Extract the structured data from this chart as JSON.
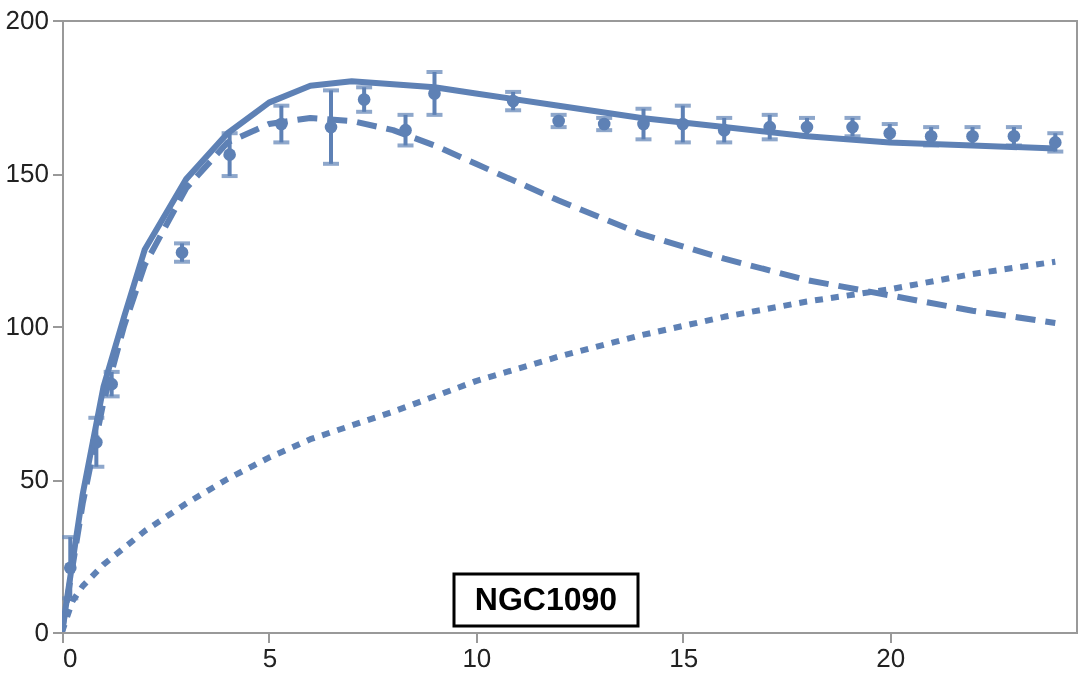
{
  "chart_data": {
    "type": "line",
    "xlim": [
      0,
      24.5
    ],
    "ylim": [
      0,
      200
    ],
    "xticks": [
      0,
      5,
      10,
      15,
      20
    ],
    "yticks": [
      0,
      50,
      100,
      150,
      200
    ],
    "grid": false,
    "annotations": [
      "NGC1090"
    ],
    "series": [
      {
        "type": "scatter",
        "color": "#5e81b5",
        "marker": "circle",
        "x": [
          0.2,
          0.83,
          1.2,
          2.9,
          4.05,
          5.3,
          6.5,
          7.3,
          8.3,
          9.0,
          10.9,
          12.0,
          13.1,
          14.05,
          15.0,
          16.0,
          17.1,
          18.0,
          19.1,
          20.0,
          21.0,
          22.0,
          23.0,
          24.0
        ],
        "values": [
          21,
          62,
          81,
          124,
          156,
          166,
          165,
          174,
          164,
          176,
          173.5,
          167,
          166,
          166,
          166,
          164,
          165,
          165,
          165,
          163,
          162,
          162,
          162,
          160
        ],
        "errors": [
          10,
          8,
          4,
          3,
          7,
          6,
          12,
          4,
          5,
          7,
          3,
          2,
          2,
          5,
          6,
          4,
          4,
          3,
          3,
          3,
          3,
          3,
          3,
          3
        ]
      },
      {
        "type": "line",
        "color": "#5e81b5",
        "line_style": "solid",
        "x": [
          0,
          0.5,
          1,
          1.5,
          2,
          3,
          4,
          5,
          6,
          7,
          8,
          9,
          10,
          12,
          14,
          16,
          18,
          20,
          22,
          24
        ],
        "values": [
          0,
          45,
          80,
          103,
          125,
          148,
          163,
          173,
          178.5,
          180,
          179,
          178,
          176,
          172,
          168,
          165,
          162,
          160,
          159,
          158
        ]
      },
      {
        "type": "line",
        "color": "#5e81b5",
        "line_style": "dashed",
        "x": [
          0,
          0.5,
          1,
          1.5,
          2,
          3,
          4,
          5,
          6,
          7,
          8,
          9,
          10,
          12,
          14,
          16,
          18,
          20,
          22,
          24
        ],
        "values": [
          0,
          42,
          75,
          100,
          120,
          145,
          160,
          166,
          168,
          167,
          164,
          159,
          153,
          141,
          130,
          122,
          115,
          110,
          105,
          101
        ]
      },
      {
        "type": "line",
        "color": "#5e81b5",
        "line_style": "dotted",
        "x": [
          0,
          0.25,
          0.5,
          1,
          2,
          3,
          4,
          5,
          6,
          8,
          10,
          12,
          14,
          16,
          18,
          20,
          22,
          24
        ],
        "values": [
          0,
          10,
          15,
          22,
          33,
          42,
          50,
          57,
          63,
          72,
          82,
          90,
          97,
          103,
          108,
          112,
          117,
          121
        ]
      }
    ]
  }
}
